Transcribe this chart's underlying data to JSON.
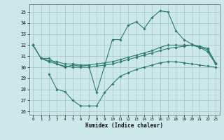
{
  "xlabel": "Humidex (Indice chaleur)",
  "bg_color": "#cce8e8",
  "grid_color": "#aacccc",
  "line_color": "#2e7d6e",
  "xlim": [
    -0.5,
    23.5
  ],
  "ylim": [
    25.7,
    35.7
  ],
  "yticks": [
    26,
    27,
    28,
    29,
    30,
    31,
    32,
    33,
    34,
    35
  ],
  "xticks": [
    0,
    1,
    2,
    3,
    4,
    5,
    6,
    7,
    8,
    9,
    10,
    11,
    12,
    13,
    14,
    15,
    16,
    17,
    18,
    19,
    20,
    21,
    22,
    23
  ],
  "line_peak_x": [
    0,
    1,
    2,
    3,
    4,
    5,
    6,
    7,
    8,
    9,
    10,
    11,
    12,
    13,
    14,
    15,
    16,
    17,
    18,
    19,
    20,
    21,
    22,
    23
  ],
  "line_peak_y": [
    32,
    30.8,
    30.8,
    30.3,
    30.0,
    30.2,
    30.1,
    30.2,
    27.7,
    30.1,
    32.5,
    32.5,
    33.8,
    34.1,
    33.5,
    34.5,
    35.1,
    35.0,
    33.3,
    32.5,
    32.1,
    31.8,
    31.4,
    30.3
  ],
  "line_upper1_x": [
    0,
    1,
    2,
    3,
    4,
    5,
    6,
    7,
    8,
    9,
    10,
    11,
    12,
    13,
    14,
    15,
    16,
    17,
    18,
    19,
    20,
    21,
    22,
    23
  ],
  "line_upper1_y": [
    32.0,
    30.8,
    30.5,
    30.3,
    30.1,
    30.0,
    30.0,
    30.0,
    30.1,
    30.2,
    30.3,
    30.5,
    30.7,
    30.9,
    31.1,
    31.3,
    31.5,
    31.7,
    31.8,
    31.9,
    32.0,
    31.8,
    31.6,
    30.3
  ],
  "line_upper2_x": [
    0,
    1,
    2,
    3,
    4,
    5,
    6,
    7,
    8,
    9,
    10,
    11,
    12,
    13,
    14,
    15,
    16,
    17,
    18,
    19,
    20,
    21,
    22,
    23
  ],
  "line_upper2_y": [
    32.0,
    30.8,
    30.6,
    30.5,
    30.3,
    30.3,
    30.2,
    30.2,
    30.3,
    30.4,
    30.5,
    30.7,
    30.9,
    31.1,
    31.3,
    31.5,
    31.8,
    32.0,
    32.0,
    32.0,
    32.0,
    31.9,
    31.7,
    30.4
  ],
  "line_lower_x": [
    2,
    3,
    4,
    5,
    6,
    7,
    8,
    9,
    10,
    11,
    12,
    13,
    14,
    15,
    16,
    17,
    18,
    19,
    20,
    21,
    22,
    23
  ],
  "line_lower_y": [
    29.4,
    28.0,
    27.8,
    27.0,
    26.5,
    26.5,
    26.5,
    27.7,
    28.5,
    29.2,
    29.5,
    29.8,
    30.0,
    30.2,
    30.4,
    30.5,
    30.5,
    30.4,
    30.3,
    30.2,
    30.1,
    30.0
  ]
}
